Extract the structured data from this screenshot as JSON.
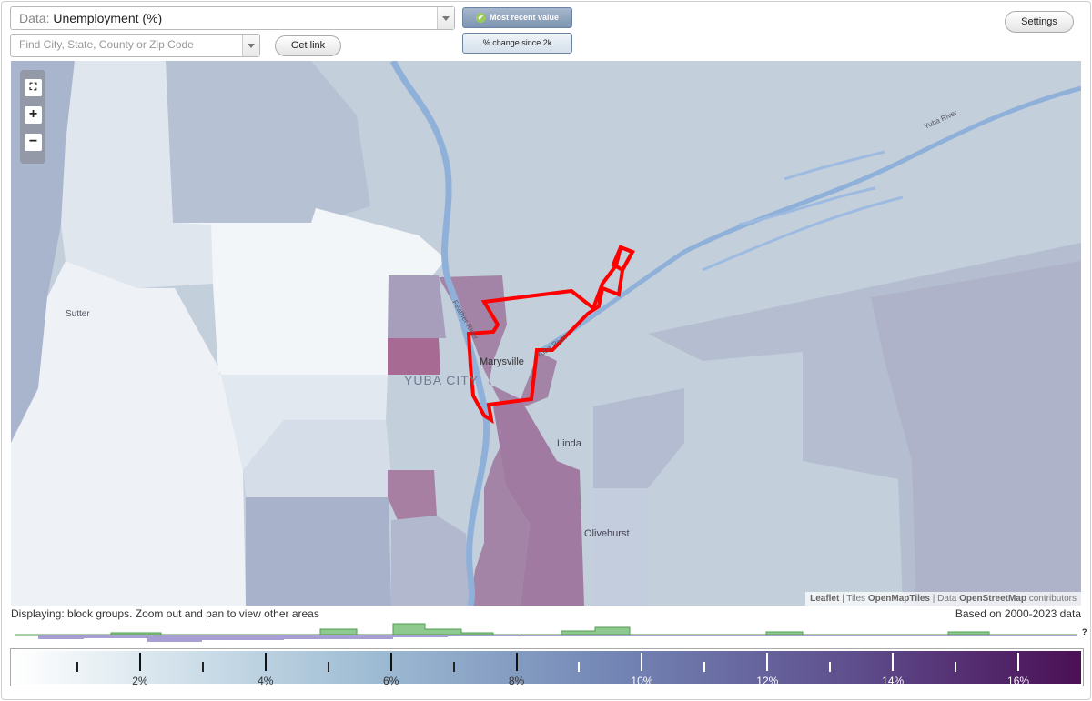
{
  "controls": {
    "data_label": "Data:",
    "data_value": "Unemployment (%)",
    "search_placeholder": "Find City, State, County or Zip Code",
    "get_link": "Get link",
    "most_recent": "Most recent value",
    "pct_change": "% change since 2k",
    "settings": "Settings"
  },
  "map": {
    "zoom_in": "+",
    "zoom_out": "−",
    "fit_bounds": "fit-bounds",
    "places": [
      "Sutter",
      "YUBA CITY",
      "Marysville",
      "Linda",
      "Olivehurst"
    ],
    "rivers": [
      "Feather River",
      "Yuba River",
      "Yuba River"
    ],
    "attribution": {
      "leaflet": "Leaflet",
      "sep1": " | Tiles ",
      "tiles": "OpenMapTiles",
      "sep2": " | Data ",
      "data": "OpenStreetMap",
      "contributors": " contributors"
    },
    "colors": {
      "highlight_outline": "#ff0000",
      "low": "#f2f6f9",
      "mid": "#9fb3cc",
      "high": "#a37fa0",
      "water": "#8fb1d9"
    }
  },
  "status": {
    "displaying": "Displaying: block groups. Zoom out and pan to view other areas",
    "based_on": "Based on 2000-2023 data"
  },
  "legend": {
    "min": 0,
    "max": 17,
    "ticks": [
      {
        "value": 2,
        "label": "2%"
      },
      {
        "value": 4,
        "label": "4%"
      },
      {
        "value": 6,
        "label": "6%"
      },
      {
        "value": 8,
        "label": "8%"
      },
      {
        "value": 10,
        "label": "10%"
      },
      {
        "value": 12,
        "label": "12%"
      },
      {
        "value": 14,
        "label": "14%"
      },
      {
        "value": 16,
        "label": "16%"
      }
    ],
    "minor_ticks": [
      1,
      3,
      5,
      7,
      9,
      11,
      13,
      15
    ],
    "unknown_label": "?"
  }
}
